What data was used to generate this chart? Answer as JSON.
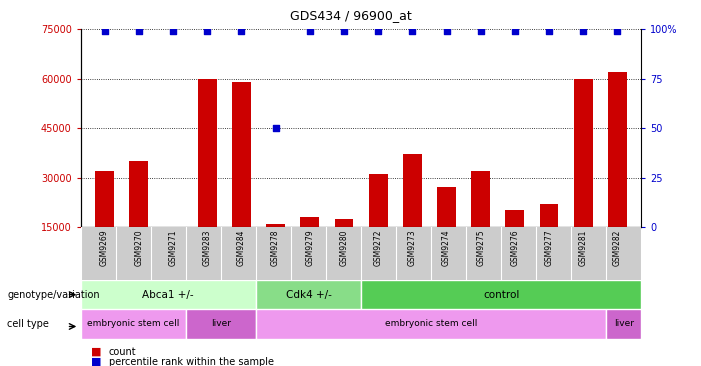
{
  "title": "GDS434 / 96900_at",
  "samples": [
    "GSM9269",
    "GSM9270",
    "GSM9271",
    "GSM9283",
    "GSM9284",
    "GSM9278",
    "GSM9279",
    "GSM9280",
    "GSM9272",
    "GSM9273",
    "GSM9274",
    "GSM9275",
    "GSM9276",
    "GSM9277",
    "GSM9281",
    "GSM9282"
  ],
  "counts": [
    32000,
    35000,
    10000,
    60000,
    59000,
    16000,
    18000,
    17500,
    31000,
    37000,
    27000,
    32000,
    20000,
    22000,
    60000,
    62000
  ],
  "percentile_rank": [
    99,
    99,
    99,
    99,
    99,
    50,
    99,
    99,
    99,
    99,
    99,
    99,
    99,
    99,
    99,
    99
  ],
  "ylim_left": [
    15000,
    75000
  ],
  "yticks_left": [
    15000,
    30000,
    45000,
    60000,
    75000
  ],
  "ylim_right": [
    0,
    100
  ],
  "yticks_right": [
    0,
    25,
    50,
    75,
    100
  ],
  "bar_color": "#cc0000",
  "dot_color": "#0000cc",
  "background_color": "#ffffff",
  "genotype_groups": [
    {
      "label": "Abca1 +/-",
      "start": 0,
      "end": 5,
      "color": "#ccffcc"
    },
    {
      "label": "Cdk4 +/-",
      "start": 5,
      "end": 8,
      "color": "#88dd88"
    },
    {
      "label": "control",
      "start": 8,
      "end": 16,
      "color": "#55cc55"
    }
  ],
  "cell_type_groups": [
    {
      "label": "embryonic stem cell",
      "start": 0,
      "end": 3,
      "color": "#ee99ee"
    },
    {
      "label": "liver",
      "start": 3,
      "end": 5,
      "color": "#cc66cc"
    },
    {
      "label": "embryonic stem cell",
      "start": 5,
      "end": 15,
      "color": "#ee99ee"
    },
    {
      "label": "liver",
      "start": 15,
      "end": 16,
      "color": "#cc66cc"
    }
  ]
}
